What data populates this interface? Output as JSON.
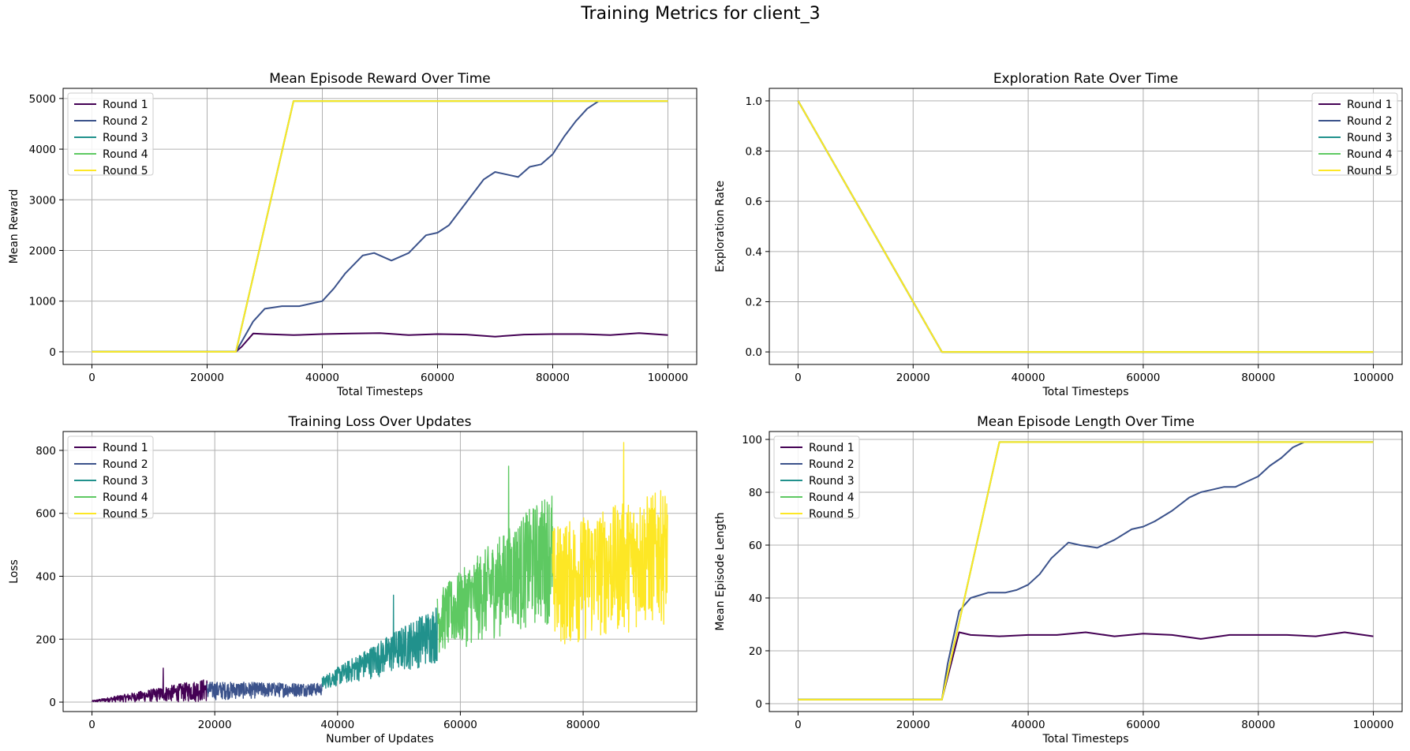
{
  "figure_title": "Training Metrics for client_3",
  "colors": {
    "round1": "#440154",
    "round2": "#3b528b",
    "round3": "#21918c",
    "round4": "#5ec962",
    "round5": "#fde725"
  },
  "chart_data": [
    {
      "type": "line",
      "title": "Mean Episode Reward Over Time",
      "xlabel": "Total Timesteps",
      "ylabel": "Mean Reward",
      "xlim": [
        -5000,
        105000
      ],
      "ylim": [
        -250,
        5200
      ],
      "xticks": [
        0,
        20000,
        40000,
        60000,
        80000,
        100000
      ],
      "yticks": [
        0,
        1000,
        2000,
        3000,
        4000,
        5000
      ],
      "grid": true,
      "legend": "upper-left",
      "series": [
        {
          "name": "Round 1",
          "x": [
            0,
            25000,
            26000,
            28000,
            30000,
            35000,
            40000,
            45000,
            50000,
            55000,
            60000,
            65000,
            70000,
            75000,
            80000,
            85000,
            90000,
            95000,
            100000
          ],
          "y": [
            0,
            0,
            100,
            360,
            350,
            330,
            350,
            360,
            370,
            330,
            350,
            340,
            300,
            340,
            350,
            350,
            330,
            370,
            330
          ]
        },
        {
          "name": "Round 2",
          "x": [
            0,
            25000,
            26000,
            28000,
            30000,
            33000,
            36000,
            38000,
            40000,
            42000,
            44000,
            47000,
            49000,
            52000,
            55000,
            58000,
            60000,
            62000,
            65000,
            68000,
            70000,
            72000,
            74000,
            76000,
            78000,
            80000,
            82000,
            84000,
            86000,
            88000,
            100000
          ],
          "y": [
            0,
            0,
            200,
            600,
            850,
            900,
            900,
            950,
            1000,
            1250,
            1550,
            1900,
            1950,
            1800,
            1950,
            2300,
            2350,
            2500,
            2950,
            3400,
            3550,
            3500,
            3450,
            3650,
            3700,
            3900,
            4250,
            4550,
            4800,
            4950,
            4950
          ]
        },
        {
          "name": "Round 3",
          "x": [
            0,
            25000,
            35000,
            100000
          ],
          "y": [
            0,
            0,
            4950,
            4950
          ]
        },
        {
          "name": "Round 4",
          "x": [
            0,
            25000,
            35000,
            100000
          ],
          "y": [
            0,
            0,
            4950,
            4950
          ]
        },
        {
          "name": "Round 5",
          "x": [
            0,
            25000,
            35000,
            100000
          ],
          "y": [
            0,
            0,
            4950,
            4950
          ]
        }
      ]
    },
    {
      "type": "line",
      "title": "Exploration Rate Over Time",
      "xlabel": "Total Timesteps",
      "ylabel": "Exploration Rate",
      "xlim": [
        -5000,
        105000
      ],
      "ylim": [
        -0.05,
        1.05
      ],
      "xticks": [
        0,
        20000,
        40000,
        60000,
        80000,
        100000
      ],
      "yticks": [
        0.0,
        0.2,
        0.4,
        0.6,
        0.8,
        1.0
      ],
      "ytick_labels": [
        "0.0",
        "0.2",
        "0.4",
        "0.6",
        "0.8",
        "1.0"
      ],
      "grid": true,
      "legend": "upper-right",
      "series": [
        {
          "name": "Round 1",
          "x": [
            0,
            25000,
            100000
          ],
          "y": [
            1.0,
            0.0,
            0.0
          ]
        },
        {
          "name": "Round 2",
          "x": [
            0,
            25000,
            100000
          ],
          "y": [
            1.0,
            0.0,
            0.0
          ]
        },
        {
          "name": "Round 3",
          "x": [
            0,
            25000,
            100000
          ],
          "y": [
            1.0,
            0.0,
            0.0
          ]
        },
        {
          "name": "Round 4",
          "x": [
            0,
            25000,
            100000
          ],
          "y": [
            1.0,
            0.0,
            0.0
          ]
        },
        {
          "name": "Round 5",
          "x": [
            0,
            25000,
            100000
          ],
          "y": [
            1.0,
            0.0,
            0.0
          ]
        }
      ]
    },
    {
      "type": "line",
      "title": "Training Loss Over Updates",
      "xlabel": "Number of Updates",
      "ylabel": "Loss",
      "xlim": [
        -4700,
        98500
      ],
      "ylim": [
        -30,
        860
      ],
      "xticks": [
        0,
        20000,
        40000,
        60000,
        80000
      ],
      "yticks": [
        0,
        200,
        400,
        600,
        800
      ],
      "grid": true,
      "legend": "upper-left",
      "series": [
        {
          "name": "Round 1",
          "x": [
            0,
            18750
          ],
          "y_min": [
            0,
            0
          ],
          "y_max": [
            5,
            75
          ],
          "y_peak": 108
        },
        {
          "name": "Round 2",
          "x": [
            18750,
            37500
          ],
          "y_min": [
            5,
            20
          ],
          "y_max": [
            65,
            60
          ]
        },
        {
          "name": "Round 3",
          "x": [
            37500,
            56250
          ],
          "y_min": [
            40,
            120
          ],
          "y_max": [
            80,
            310
          ],
          "y_peak": 340
        },
        {
          "name": "Round 4",
          "x": [
            56250,
            75000
          ],
          "y_min": [
            150,
            250
          ],
          "y_max": [
            350,
            680
          ],
          "y_peak": 750
        },
        {
          "name": "Round 5",
          "x": [
            75000,
            93750
          ],
          "y_min": [
            160,
            250
          ],
          "y_max": [
            560,
            680
          ],
          "y_peak": 825
        }
      ]
    },
    {
      "type": "line",
      "title": "Mean Episode Length Over Time",
      "xlabel": "Total Timesteps",
      "ylabel": "Mean Episode Length",
      "xlim": [
        -5000,
        105000
      ],
      "ylim": [
        -3,
        103
      ],
      "xticks": [
        0,
        20000,
        40000,
        60000,
        80000,
        100000
      ],
      "yticks": [
        0,
        20,
        40,
        60,
        80,
        100
      ],
      "grid": true,
      "legend": "upper-left",
      "series": [
        {
          "name": "Round 1",
          "x": [
            0,
            25000,
            26000,
            28000,
            30000,
            35000,
            40000,
            45000,
            50000,
            55000,
            60000,
            65000,
            70000,
            75000,
            80000,
            85000,
            90000,
            95000,
            100000
          ],
          "y": [
            1.5,
            1.5,
            10,
            27,
            26,
            25.5,
            26,
            26,
            27,
            25.5,
            26.5,
            26,
            24.5,
            26,
            26,
            26,
            25.5,
            27,
            25.5
          ]
        },
        {
          "name": "Round 2",
          "x": [
            0,
            25000,
            26000,
            28000,
            30000,
            33000,
            36000,
            38000,
            40000,
            42000,
            44000,
            47000,
            49000,
            52000,
            55000,
            58000,
            60000,
            62000,
            65000,
            68000,
            70000,
            72000,
            74000,
            76000,
            78000,
            80000,
            82000,
            84000,
            86000,
            88000,
            100000
          ],
          "y": [
            1.5,
            1.5,
            15,
            35,
            40,
            42,
            42,
            43,
            45,
            49,
            55,
            61,
            60,
            59,
            62,
            66,
            67,
            69,
            73,
            78,
            80,
            81,
            82,
            82,
            84,
            86,
            90,
            93,
            97,
            99,
            99
          ]
        },
        {
          "name": "Round 3",
          "x": [
            0,
            25000,
            35000,
            100000
          ],
          "y": [
            1.5,
            1.5,
            99,
            99
          ]
        },
        {
          "name": "Round 4",
          "x": [
            0,
            25000,
            35000,
            100000
          ],
          "y": [
            1.5,
            1.5,
            99,
            99
          ]
        },
        {
          "name": "Round 5",
          "x": [
            0,
            25000,
            35000,
            100000
          ],
          "y": [
            1.5,
            1.5,
            99,
            99
          ]
        }
      ]
    }
  ]
}
